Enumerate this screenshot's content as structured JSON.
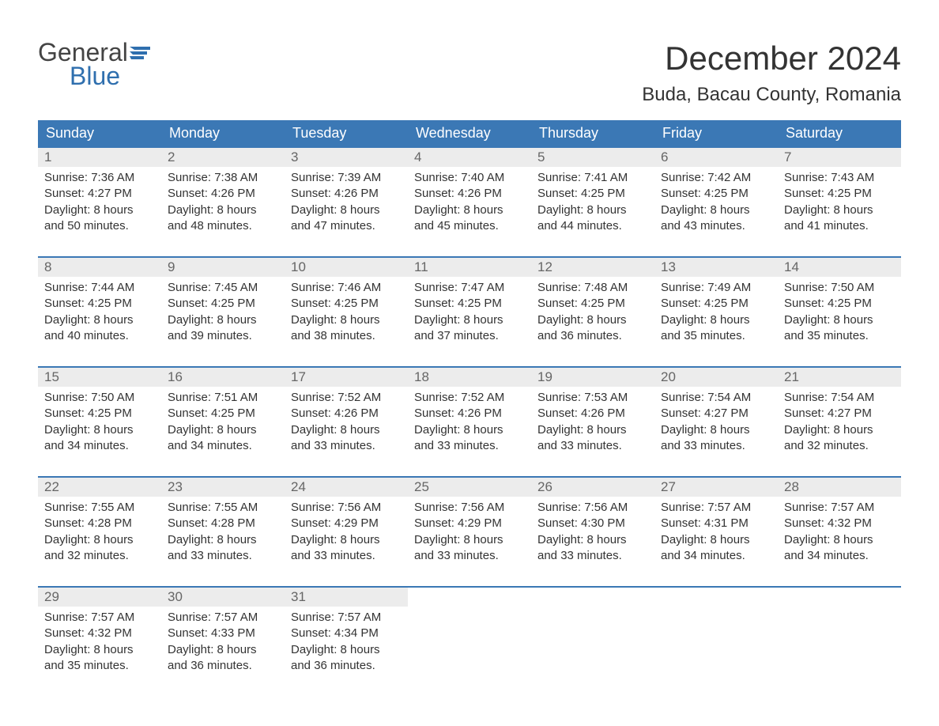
{
  "logo": {
    "line1": "General",
    "line2": "Blue"
  },
  "title": "December 2024",
  "location": "Buda, Bacau County, Romania",
  "colors": {
    "header_bg": "#3b78b5",
    "header_text": "#ffffff",
    "daynum_bg": "#ececec",
    "daynum_text": "#666666",
    "body_text": "#333333",
    "border": "#3b78b5",
    "logo_blue": "#2f6fae",
    "page_bg": "#ffffff"
  },
  "layout": {
    "columns": 7,
    "weeks": 5,
    "font_family": "Arial",
    "title_fontsize": 42,
    "location_fontsize": 24,
    "header_fontsize": 18,
    "daynum_fontsize": 17,
    "detail_fontsize": 15
  },
  "day_headers": [
    "Sunday",
    "Monday",
    "Tuesday",
    "Wednesday",
    "Thursday",
    "Friday",
    "Saturday"
  ],
  "weeks": [
    [
      {
        "n": "1",
        "sr": "Sunrise: 7:36 AM",
        "ss": "Sunset: 4:27 PM",
        "d1": "Daylight: 8 hours",
        "d2": "and 50 minutes."
      },
      {
        "n": "2",
        "sr": "Sunrise: 7:38 AM",
        "ss": "Sunset: 4:26 PM",
        "d1": "Daylight: 8 hours",
        "d2": "and 48 minutes."
      },
      {
        "n": "3",
        "sr": "Sunrise: 7:39 AM",
        "ss": "Sunset: 4:26 PM",
        "d1": "Daylight: 8 hours",
        "d2": "and 47 minutes."
      },
      {
        "n": "4",
        "sr": "Sunrise: 7:40 AM",
        "ss": "Sunset: 4:26 PM",
        "d1": "Daylight: 8 hours",
        "d2": "and 45 minutes."
      },
      {
        "n": "5",
        "sr": "Sunrise: 7:41 AM",
        "ss": "Sunset: 4:25 PM",
        "d1": "Daylight: 8 hours",
        "d2": "and 44 minutes."
      },
      {
        "n": "6",
        "sr": "Sunrise: 7:42 AM",
        "ss": "Sunset: 4:25 PM",
        "d1": "Daylight: 8 hours",
        "d2": "and 43 minutes."
      },
      {
        "n": "7",
        "sr": "Sunrise: 7:43 AM",
        "ss": "Sunset: 4:25 PM",
        "d1": "Daylight: 8 hours",
        "d2": "and 41 minutes."
      }
    ],
    [
      {
        "n": "8",
        "sr": "Sunrise: 7:44 AM",
        "ss": "Sunset: 4:25 PM",
        "d1": "Daylight: 8 hours",
        "d2": "and 40 minutes."
      },
      {
        "n": "9",
        "sr": "Sunrise: 7:45 AM",
        "ss": "Sunset: 4:25 PM",
        "d1": "Daylight: 8 hours",
        "d2": "and 39 minutes."
      },
      {
        "n": "10",
        "sr": "Sunrise: 7:46 AM",
        "ss": "Sunset: 4:25 PM",
        "d1": "Daylight: 8 hours",
        "d2": "and 38 minutes."
      },
      {
        "n": "11",
        "sr": "Sunrise: 7:47 AM",
        "ss": "Sunset: 4:25 PM",
        "d1": "Daylight: 8 hours",
        "d2": "and 37 minutes."
      },
      {
        "n": "12",
        "sr": "Sunrise: 7:48 AM",
        "ss": "Sunset: 4:25 PM",
        "d1": "Daylight: 8 hours",
        "d2": "and 36 minutes."
      },
      {
        "n": "13",
        "sr": "Sunrise: 7:49 AM",
        "ss": "Sunset: 4:25 PM",
        "d1": "Daylight: 8 hours",
        "d2": "and 35 minutes."
      },
      {
        "n": "14",
        "sr": "Sunrise: 7:50 AM",
        "ss": "Sunset: 4:25 PM",
        "d1": "Daylight: 8 hours",
        "d2": "and 35 minutes."
      }
    ],
    [
      {
        "n": "15",
        "sr": "Sunrise: 7:50 AM",
        "ss": "Sunset: 4:25 PM",
        "d1": "Daylight: 8 hours",
        "d2": "and 34 minutes."
      },
      {
        "n": "16",
        "sr": "Sunrise: 7:51 AM",
        "ss": "Sunset: 4:25 PM",
        "d1": "Daylight: 8 hours",
        "d2": "and 34 minutes."
      },
      {
        "n": "17",
        "sr": "Sunrise: 7:52 AM",
        "ss": "Sunset: 4:26 PM",
        "d1": "Daylight: 8 hours",
        "d2": "and 33 minutes."
      },
      {
        "n": "18",
        "sr": "Sunrise: 7:52 AM",
        "ss": "Sunset: 4:26 PM",
        "d1": "Daylight: 8 hours",
        "d2": "and 33 minutes."
      },
      {
        "n": "19",
        "sr": "Sunrise: 7:53 AM",
        "ss": "Sunset: 4:26 PM",
        "d1": "Daylight: 8 hours",
        "d2": "and 33 minutes."
      },
      {
        "n": "20",
        "sr": "Sunrise: 7:54 AM",
        "ss": "Sunset: 4:27 PM",
        "d1": "Daylight: 8 hours",
        "d2": "and 33 minutes."
      },
      {
        "n": "21",
        "sr": "Sunrise: 7:54 AM",
        "ss": "Sunset: 4:27 PM",
        "d1": "Daylight: 8 hours",
        "d2": "and 32 minutes."
      }
    ],
    [
      {
        "n": "22",
        "sr": "Sunrise: 7:55 AM",
        "ss": "Sunset: 4:28 PM",
        "d1": "Daylight: 8 hours",
        "d2": "and 32 minutes."
      },
      {
        "n": "23",
        "sr": "Sunrise: 7:55 AM",
        "ss": "Sunset: 4:28 PM",
        "d1": "Daylight: 8 hours",
        "d2": "and 33 minutes."
      },
      {
        "n": "24",
        "sr": "Sunrise: 7:56 AM",
        "ss": "Sunset: 4:29 PM",
        "d1": "Daylight: 8 hours",
        "d2": "and 33 minutes."
      },
      {
        "n": "25",
        "sr": "Sunrise: 7:56 AM",
        "ss": "Sunset: 4:29 PM",
        "d1": "Daylight: 8 hours",
        "d2": "and 33 minutes."
      },
      {
        "n": "26",
        "sr": "Sunrise: 7:56 AM",
        "ss": "Sunset: 4:30 PM",
        "d1": "Daylight: 8 hours",
        "d2": "and 33 minutes."
      },
      {
        "n": "27",
        "sr": "Sunrise: 7:57 AM",
        "ss": "Sunset: 4:31 PM",
        "d1": "Daylight: 8 hours",
        "d2": "and 34 minutes."
      },
      {
        "n": "28",
        "sr": "Sunrise: 7:57 AM",
        "ss": "Sunset: 4:32 PM",
        "d1": "Daylight: 8 hours",
        "d2": "and 34 minutes."
      }
    ],
    [
      {
        "n": "29",
        "sr": "Sunrise: 7:57 AM",
        "ss": "Sunset: 4:32 PM",
        "d1": "Daylight: 8 hours",
        "d2": "and 35 minutes."
      },
      {
        "n": "30",
        "sr": "Sunrise: 7:57 AM",
        "ss": "Sunset: 4:33 PM",
        "d1": "Daylight: 8 hours",
        "d2": "and 36 minutes."
      },
      {
        "n": "31",
        "sr": "Sunrise: 7:57 AM",
        "ss": "Sunset: 4:34 PM",
        "d1": "Daylight: 8 hours",
        "d2": "and 36 minutes."
      },
      null,
      null,
      null,
      null
    ]
  ]
}
